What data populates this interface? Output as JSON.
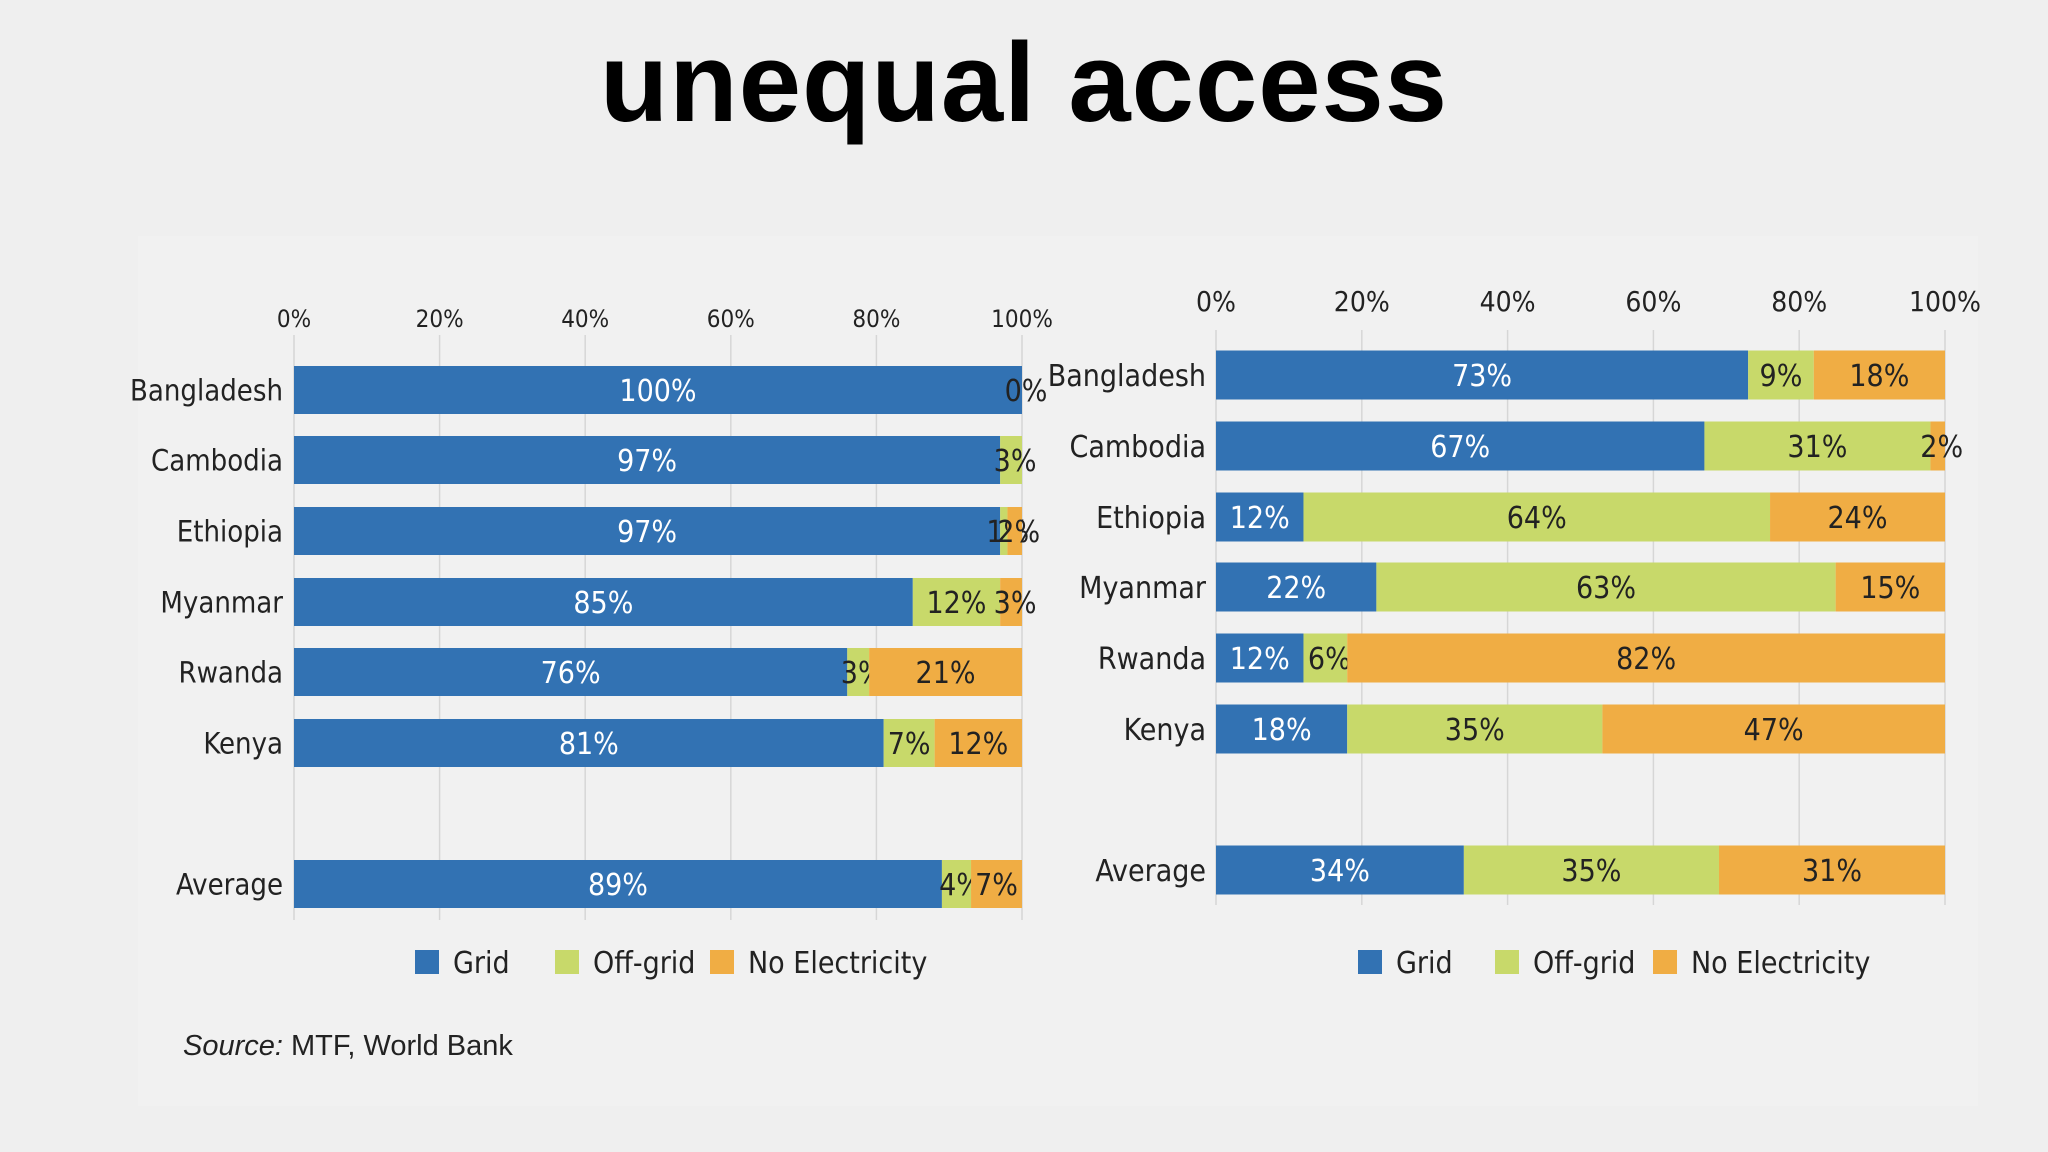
{
  "title": "unequal access",
  "source": {
    "label": "Source:",
    "text": "MTF, World Bank"
  },
  "colors": {
    "grid": "#3272b3",
    "offgrid": "#c8d96a",
    "noelec": "#f0ad44",
    "gridline": "#d6d6d6"
  },
  "chart_data": [
    {
      "type": "bar",
      "orientation": "horizontal",
      "stacked": true,
      "categories": [
        "Bangladesh",
        "Cambodia",
        "Ethiopia",
        "Myanmar",
        "Rwanda",
        "Kenya",
        "Average"
      ],
      "xlim": [
        0,
        100
      ],
      "x_ticks": [
        "0%",
        "20%",
        "40%",
        "60%",
        "80%",
        "100%"
      ],
      "legend": [
        "Grid",
        "Off-grid",
        "No Electricity"
      ],
      "legend_position": "bottom",
      "series": [
        {
          "name": "Grid",
          "values": [
            100,
            97,
            97,
            85,
            76,
            81,
            89
          ],
          "labels": [
            "100%",
            "97%",
            "97%",
            "85%",
            "76%",
            "81%",
            "89%"
          ]
        },
        {
          "name": "Off-grid",
          "values": [
            0,
            3,
            1,
            12,
            3,
            7,
            4
          ],
          "labels": [
            "0%",
            "3%",
            "1%",
            "12%",
            "3%",
            "7%",
            "4%"
          ]
        },
        {
          "name": "No Electricity",
          "values": [
            0,
            0,
            2,
            3,
            21,
            12,
            7
          ],
          "labels": [
            "",
            "",
            "2%",
            "3%",
            "21%",
            "12%",
            "7%"
          ]
        }
      ]
    },
    {
      "type": "bar",
      "orientation": "horizontal",
      "stacked": true,
      "categories": [
        "Bangladesh",
        "Cambodia",
        "Ethiopia",
        "Myanmar",
        "Rwanda",
        "Kenya",
        "Average"
      ],
      "xlim": [
        0,
        100
      ],
      "x_ticks": [
        "0%",
        "20%",
        "40%",
        "60%",
        "80%",
        "100%"
      ],
      "legend": [
        "Grid",
        "Off-grid",
        "No Electricity"
      ],
      "legend_position": "bottom",
      "series": [
        {
          "name": "Grid",
          "values": [
            73,
            67,
            12,
            22,
            12,
            18,
            34
          ],
          "labels": [
            "73%",
            "67%",
            "12%",
            "22%",
            "12%",
            "18%",
            "34%"
          ]
        },
        {
          "name": "Off-grid",
          "values": [
            9,
            31,
            64,
            63,
            6,
            35,
            35
          ],
          "labels": [
            "9%",
            "31%",
            "64%",
            "63%",
            "6%",
            "35%",
            "35%"
          ]
        },
        {
          "name": "No Electricity",
          "values": [
            18,
            2,
            24,
            15,
            82,
            47,
            31
          ],
          "labels": [
            "18%",
            "2%",
            "24%",
            "15%",
            "82%",
            "47%",
            "31%"
          ]
        }
      ]
    }
  ]
}
